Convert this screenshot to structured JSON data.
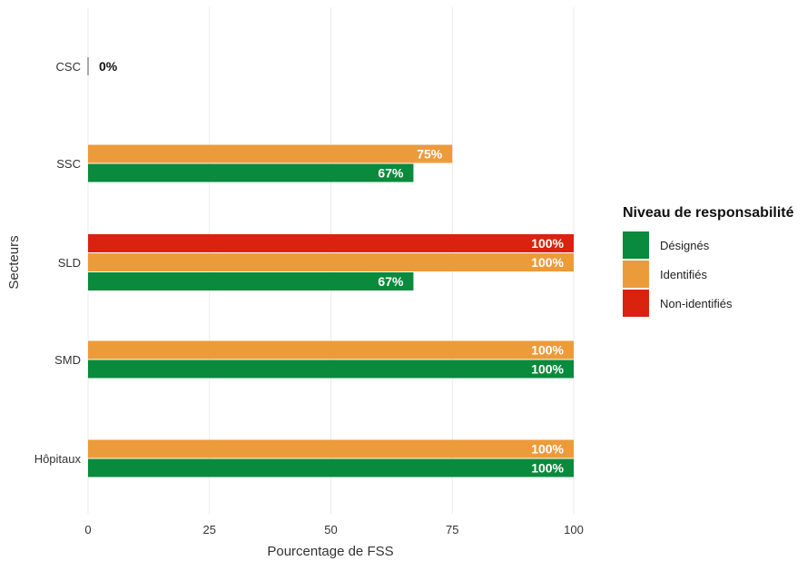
{
  "chart_data": {
    "type": "bar",
    "orientation": "horizontal",
    "title": "",
    "xlabel": "Pourcentage de FSS",
    "ylabel": "Secteurs",
    "xlim": [
      0,
      100
    ],
    "xticks": [
      "0",
      "25",
      "50",
      "75",
      "100"
    ],
    "grid": true,
    "legend_title": "Niveau de responsabilité",
    "legend_position": "right",
    "categories": [
      {
        "name": "CSC",
        "bars": [
          {
            "level": "Désignés",
            "value": 0,
            "label": "0%"
          }
        ]
      },
      {
        "name": "SSC",
        "bars": [
          {
            "level": "Identifiés",
            "value": 75,
            "label": "75%"
          },
          {
            "level": "Désignés",
            "value": 67,
            "label": "67%"
          }
        ]
      },
      {
        "name": "SLD",
        "bars": [
          {
            "level": "Non-identifiés",
            "value": 100,
            "label": "100%"
          },
          {
            "level": "Identifiés",
            "value": 100,
            "label": "100%"
          },
          {
            "level": "Désignés",
            "value": 67,
            "label": "67%"
          }
        ]
      },
      {
        "name": "SMD",
        "bars": [
          {
            "level": "Identifiés",
            "value": 100,
            "label": "100%"
          },
          {
            "level": "Désignés",
            "value": 100,
            "label": "100%"
          }
        ]
      },
      {
        "name": "Hôpitaux",
        "bars": [
          {
            "level": "Identifiés",
            "value": 100,
            "label": "100%"
          },
          {
            "level": "Désignés",
            "value": 100,
            "label": "100%"
          }
        ]
      }
    ],
    "legend": [
      {
        "name": "Désignés",
        "color": "#0a8a3c"
      },
      {
        "name": "Identifiés",
        "color": "#ec9b3b"
      },
      {
        "name": "Non-identifiés",
        "color": "#d9230f"
      }
    ]
  }
}
